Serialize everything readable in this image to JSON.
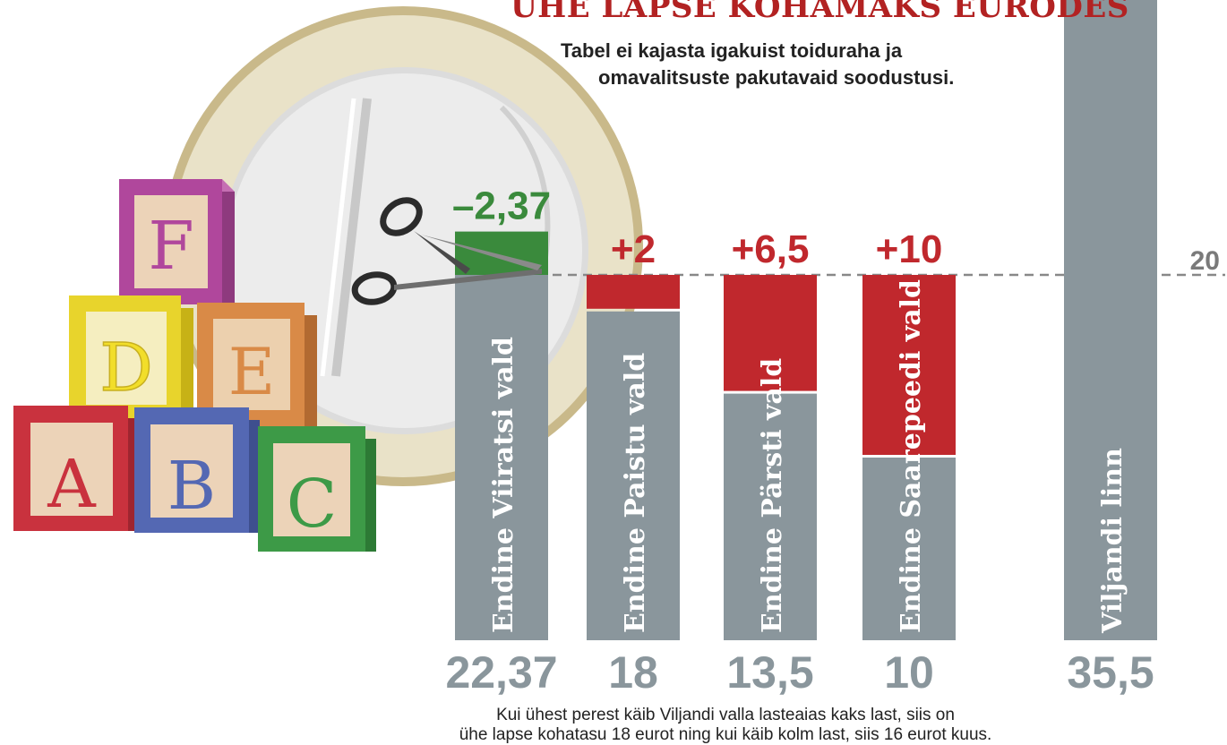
{
  "chart_data": {
    "type": "bar",
    "title": "ÜHE LAPSE KOHAMAKS EURODES",
    "subtitle_lines": [
      "Tabel ei kajasta igakuist toiduraha ja",
      "omavalitsuste pakutavaid soodustusi."
    ],
    "categories": [
      "Endine Viiratsi vald",
      "Endine Paistu vald",
      "Endine Pärsti vald",
      "Endine Saarepeedi vald",
      "Viljandi linn"
    ],
    "values": [
      22.37,
      18,
      13.5,
      10,
      35.5
    ],
    "value_labels": [
      "22,37",
      "18",
      "13,5",
      "10",
      "35,5"
    ],
    "target_value": 20,
    "reference_line": {
      "value": 20,
      "label": "20"
    },
    "changes": [
      {
        "category": "Endine Viiratsi vald",
        "value": -2.37,
        "label": "–2,37",
        "color": "#3a8a3c"
      },
      {
        "category": "Endine Paistu vald",
        "value": 2,
        "label": "+2",
        "color": "#c0282d"
      },
      {
        "category": "Endine Pärsti vald",
        "value": 6.5,
        "label": "+6,5",
        "color": "#c0282d"
      },
      {
        "category": "Endine Saarepeedi vald",
        "value": 10,
        "label": "+10",
        "color": "#c0282d"
      },
      {
        "category": "Viljandi linn",
        "value": null,
        "label": "",
        "color": null
      }
    ],
    "colors": {
      "base_bar": "#8a969c",
      "increase": "#c0282d",
      "decrease": "#3a8a3c",
      "title": "#b22222",
      "value_label": "#8a969c",
      "reference_line": "#888888"
    },
    "footnote_lines": [
      "Kui ühest perest käib Viljandi valla lasteaias kaks last, siis on",
      "ühe lapse kohatasu 18 eurot ning kui käib kolm last, siis 16 eurot kuus."
    ],
    "illustration": {
      "blocks": [
        "F",
        "D",
        "E",
        "A",
        "B",
        "C"
      ],
      "icons": [
        "euro-coin-icon",
        "scissors-icon"
      ]
    }
  }
}
